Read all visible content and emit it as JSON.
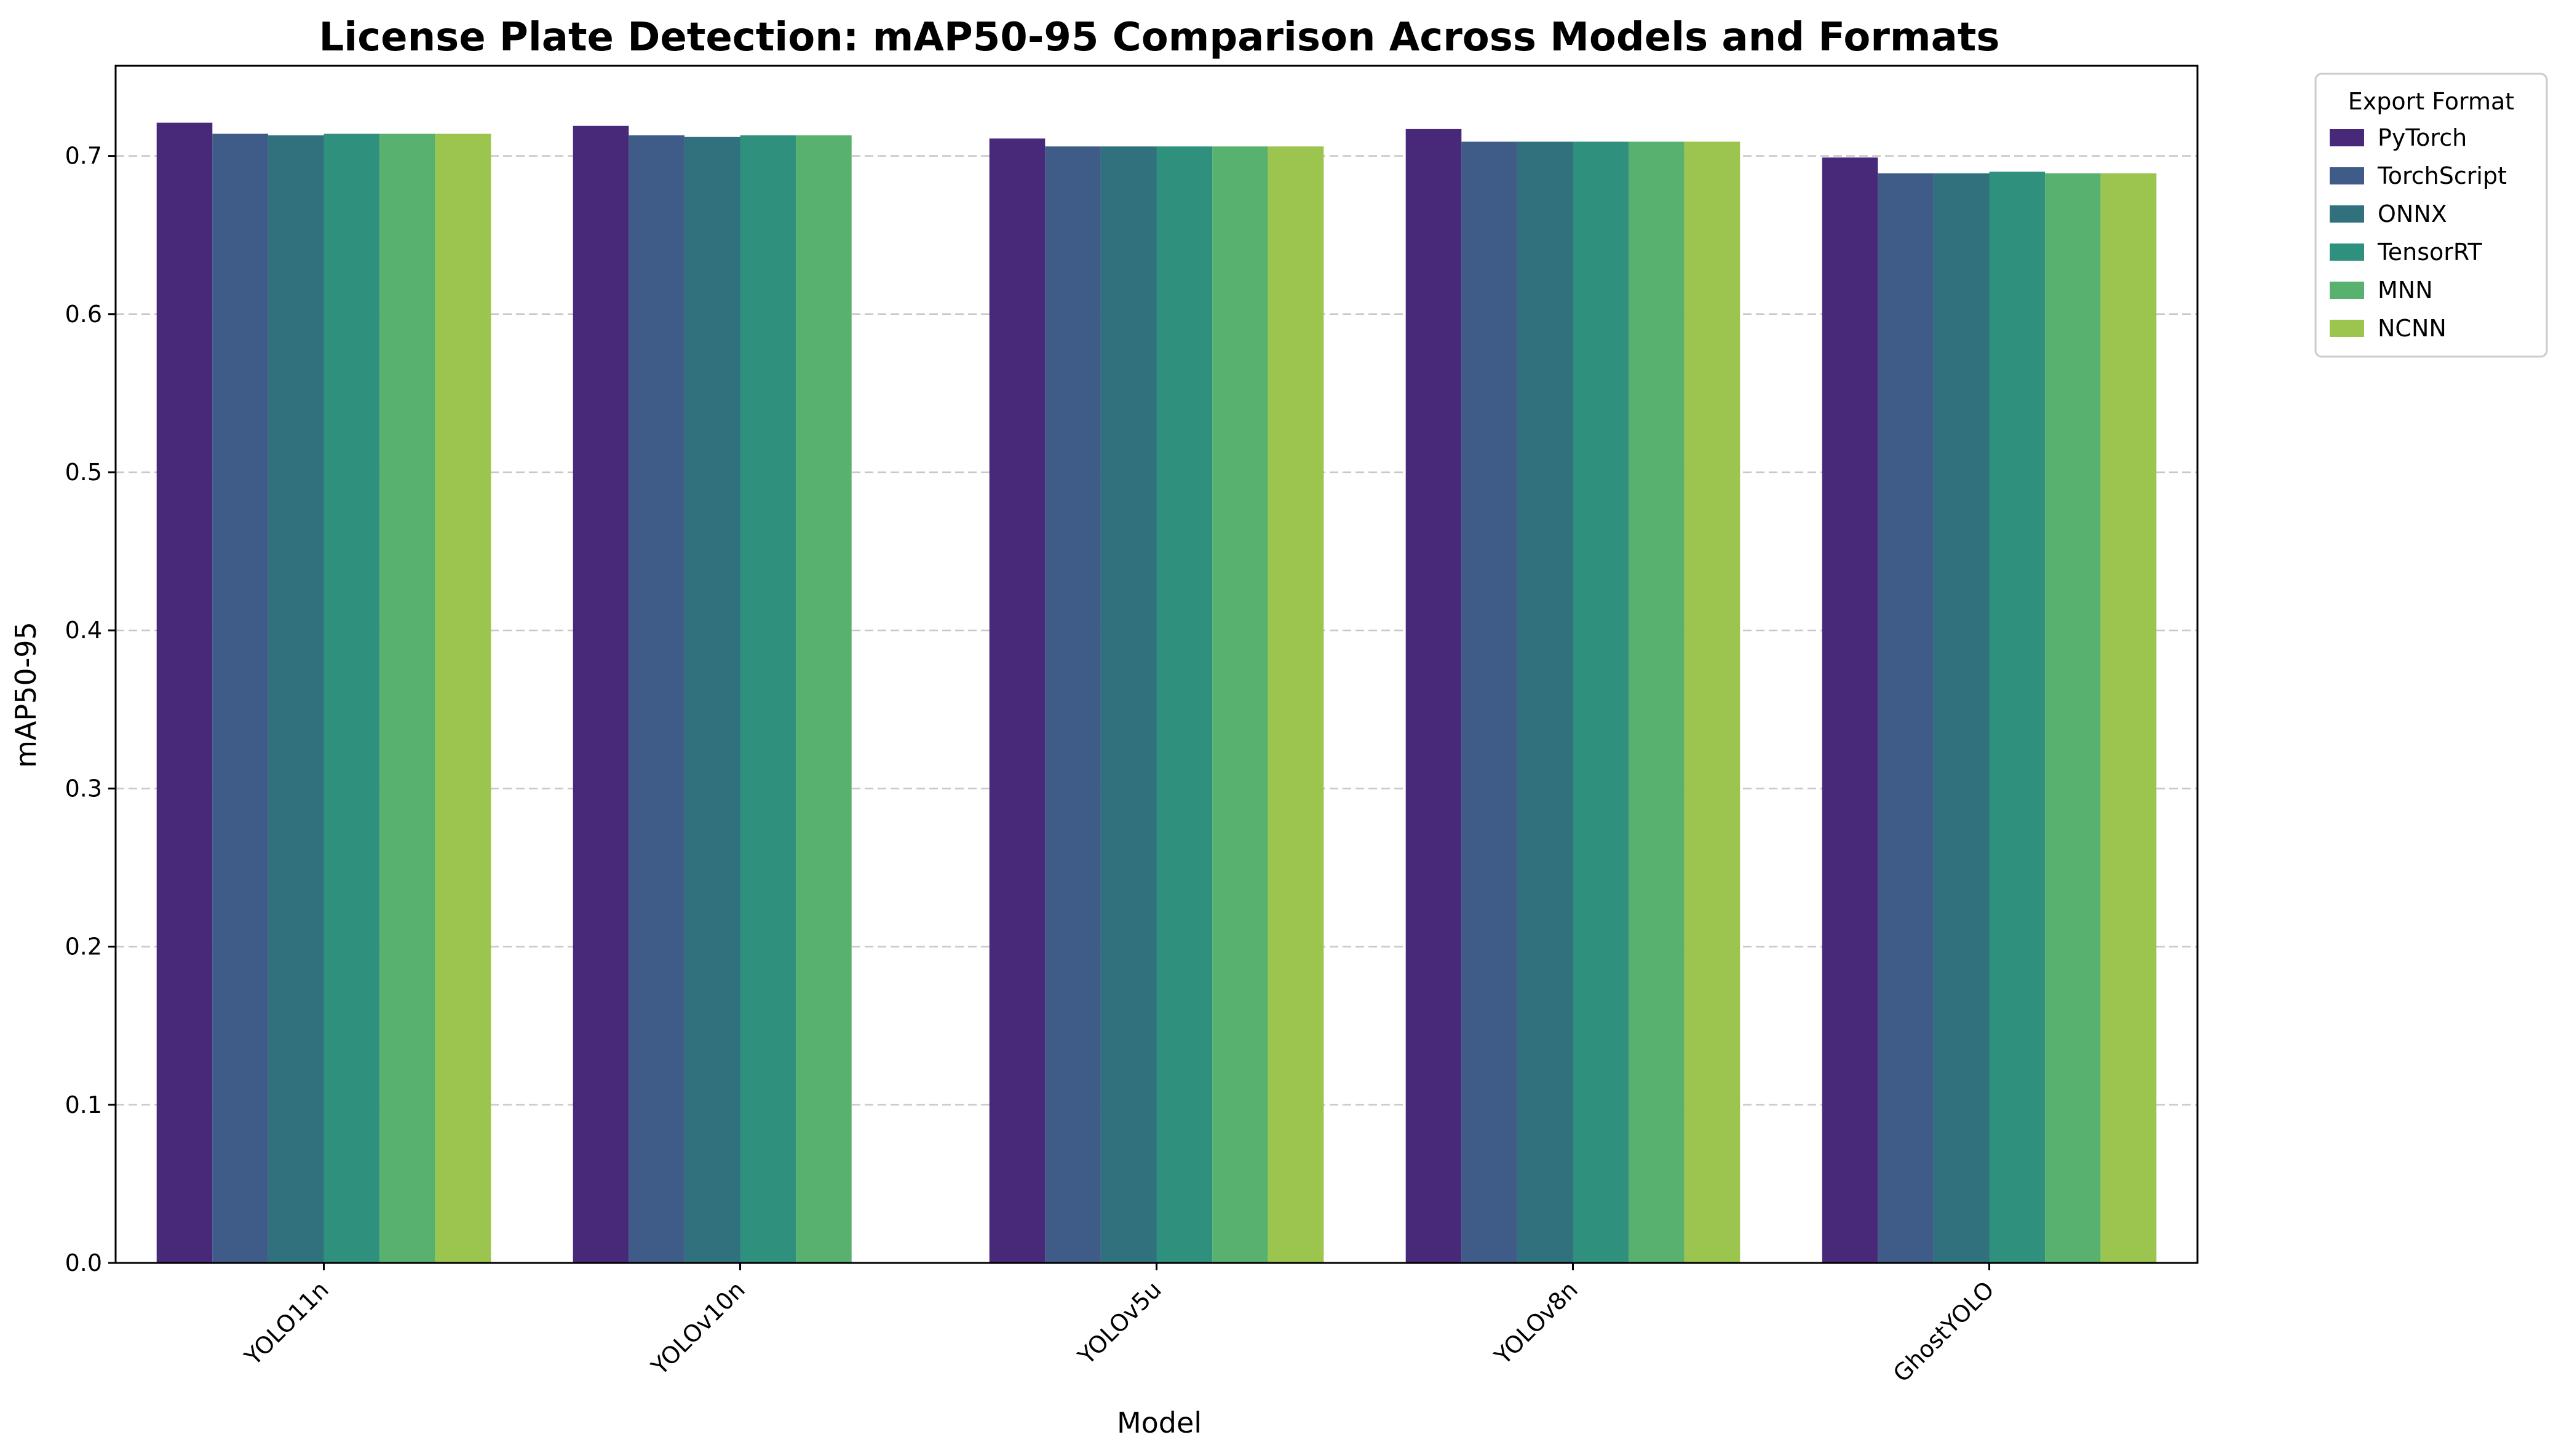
{
  "chart_data": {
    "type": "bar",
    "title": "License Plate Detection: mAP50-95 Comparison Across Models and Formats",
    "xlabel": "Model",
    "ylabel": "mAP50-95",
    "ylim": [
      0,
      0.757
    ],
    "yticks": [
      "0.0",
      "0.1",
      "0.2",
      "0.3",
      "0.4",
      "0.5",
      "0.6",
      "0.7"
    ],
    "grid": "horizontal dashed",
    "legend_title": "Export Format",
    "legend_position": "outside right",
    "categories": [
      "YOLO11n",
      "YOLOv10n",
      "YOLOv5u",
      "YOLOv8n",
      "GhostYOLO"
    ],
    "series": [
      {
        "name": "PyTorch",
        "color": "#482878",
        "values": [
          0.721,
          0.719,
          0.711,
          0.717,
          0.699
        ]
      },
      {
        "name": "TorchScript",
        "color": "#3e5c87",
        "values": [
          0.714,
          0.713,
          0.706,
          0.709,
          0.689
        ]
      },
      {
        "name": "ONNX",
        "color": "#31717e",
        "values": [
          0.713,
          0.712,
          0.706,
          0.709,
          0.689
        ]
      },
      {
        "name": "TensorRT",
        "color": "#2e907d",
        "values": [
          0.714,
          0.713,
          0.706,
          0.709,
          0.69
        ]
      },
      {
        "name": "MNN",
        "color": "#59b16f",
        "values": [
          0.714,
          0.713,
          0.706,
          0.709,
          0.689
        ]
      },
      {
        "name": "NCNN",
        "color": "#9bc54e",
        "values": [
          0.714,
          null,
          0.706,
          0.709,
          0.689
        ]
      }
    ]
  }
}
